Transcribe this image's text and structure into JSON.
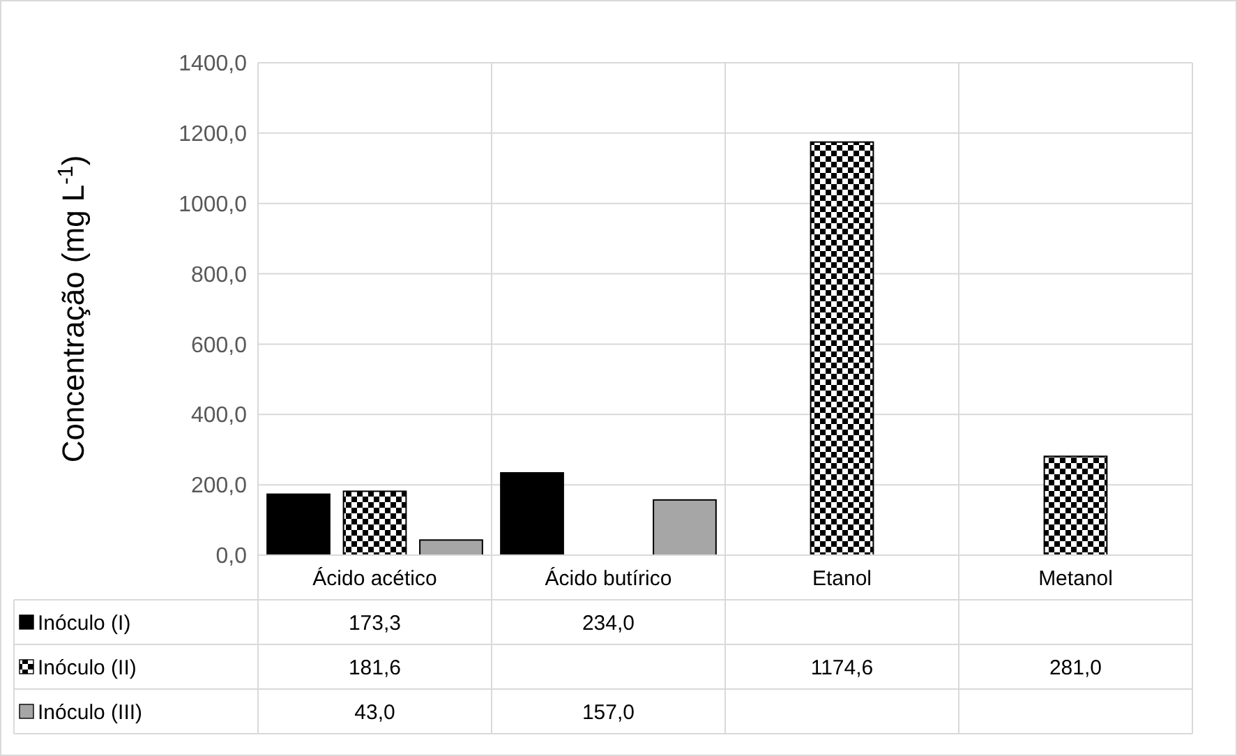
{
  "chart_data": {
    "type": "bar",
    "ylabel": "Concentração (mg L$^{-1}$)",
    "categories": [
      "Ácido acético",
      "Ácido butírico",
      "Etanol",
      "Metanol"
    ],
    "series": [
      {
        "name": "Inóculo (I)",
        "color": "#000000",
        "values": [
          173.3,
          234.0,
          null,
          null
        ],
        "value_labels": [
          "173,3",
          "234,0",
          null,
          null
        ]
      },
      {
        "name": "Inóculo (II)",
        "color": "#000000",
        "values": [
          181.6,
          null,
          1174.6,
          281.0
        ],
        "value_labels": [
          "181,6",
          null,
          "1174,6",
          "281,0"
        ]
      },
      {
        "name": "Inóculo (III)",
        "color": "#a6a6a6",
        "values": [
          43.0,
          157.0,
          null,
          null
        ],
        "value_labels": [
          "43,0",
          "157,0",
          null,
          null
        ]
      }
    ],
    "ylim": [
      0,
      1400
    ],
    "yticks": [
      {
        "value": 0,
        "label": "0,0"
      },
      {
        "value": 200,
        "label": "200,0"
      },
      {
        "value": 400,
        "label": "400,0"
      },
      {
        "value": 600,
        "label": "600,0"
      },
      {
        "value": 800,
        "label": "800,0"
      },
      {
        "value": 1000,
        "label": "1000,0"
      },
      {
        "value": 1200,
        "label": "1200,0"
      },
      {
        "value": 1400,
        "label": "1400,0"
      }
    ],
    "grid": "y",
    "legend": "bottom"
  }
}
